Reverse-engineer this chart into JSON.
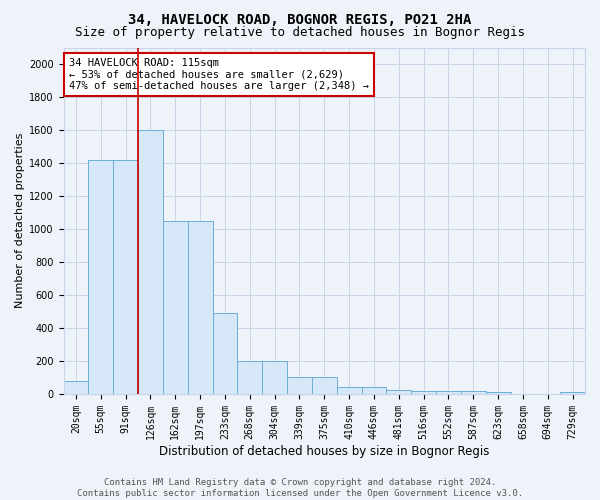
{
  "title": "34, HAVELOCK ROAD, BOGNOR REGIS, PO21 2HA",
  "subtitle": "Size of property relative to detached houses in Bognor Regis",
  "xlabel": "Distribution of detached houses by size in Bognor Regis",
  "ylabel": "Number of detached properties",
  "footer_line1": "Contains HM Land Registry data © Crown copyright and database right 2024.",
  "footer_line2": "Contains public sector information licensed under the Open Government Licence v3.0.",
  "bin_labels": [
    "20sqm",
    "55sqm",
    "91sqm",
    "126sqm",
    "162sqm",
    "197sqm",
    "233sqm",
    "268sqm",
    "304sqm",
    "339sqm",
    "375sqm",
    "410sqm",
    "446sqm",
    "481sqm",
    "516sqm",
    "552sqm",
    "587sqm",
    "623sqm",
    "658sqm",
    "694sqm",
    "729sqm"
  ],
  "bar_heights": [
    80,
    1420,
    1420,
    1600,
    1050,
    1050,
    490,
    200,
    200,
    105,
    105,
    40,
    40,
    25,
    20,
    15,
    15,
    10,
    0,
    0,
    10
  ],
  "bar_color": "#d6e8f7",
  "bar_edge_color": "#6baed6",
  "grid_color": "#c8d4e8",
  "background_color": "#eef2f9",
  "vline_x_idx": 3,
  "vline_color": "#cc0000",
  "annotation_text": "34 HAVELOCK ROAD: 115sqm\n← 53% of detached houses are smaller (2,629)\n47% of semi-detached houses are larger (2,348) →",
  "annotation_box_color": "#ffffff",
  "annotation_border_color": "#cc0000",
  "ylim": [
    0,
    2100
  ],
  "yticks": [
    0,
    200,
    400,
    600,
    800,
    1000,
    1200,
    1400,
    1600,
    1800,
    2000
  ],
  "title_fontsize": 10,
  "subtitle_fontsize": 9,
  "xlabel_fontsize": 8.5,
  "ylabel_fontsize": 8,
  "tick_fontsize": 7,
  "annotation_fontsize": 7.5,
  "footer_fontsize": 6.5
}
